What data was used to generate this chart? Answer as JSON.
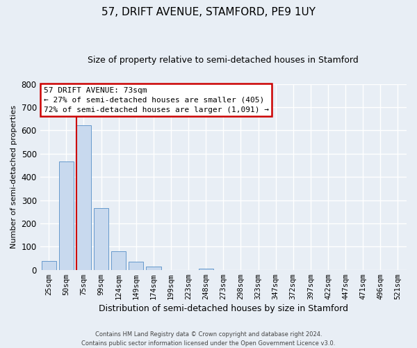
{
  "title": "57, DRIFT AVENUE, STAMFORD, PE9 1UY",
  "subtitle": "Size of property relative to semi-detached houses in Stamford",
  "xlabel": "Distribution of semi-detached houses by size in Stamford",
  "ylabel": "Number of semi-detached properties",
  "bar_labels": [
    "25sqm",
    "50sqm",
    "75sqm",
    "99sqm",
    "124sqm",
    "149sqm",
    "174sqm",
    "199sqm",
    "223sqm",
    "248sqm",
    "273sqm",
    "298sqm",
    "323sqm",
    "347sqm",
    "372sqm",
    "397sqm",
    "422sqm",
    "447sqm",
    "471sqm",
    "496sqm",
    "521sqm"
  ],
  "bar_values": [
    38,
    465,
    623,
    265,
    80,
    35,
    13,
    0,
    0,
    5,
    0,
    0,
    0,
    0,
    0,
    0,
    0,
    0,
    0,
    0,
    0
  ],
  "bar_color": "#c8d9ee",
  "bar_edge_color": "#6699cc",
  "annotation_title": "57 DRIFT AVENUE: 73sqm",
  "annotation_line1": "← 27% of semi-detached houses are smaller (405)",
  "annotation_line2": "72% of semi-detached houses are larger (1,091) →",
  "annotation_box_facecolor": "#ffffff",
  "annotation_box_edgecolor": "#cc0000",
  "marker_line_color": "#cc0000",
  "ylim": [
    0,
    800
  ],
  "yticks": [
    0,
    100,
    200,
    300,
    400,
    500,
    600,
    700,
    800
  ],
  "footer_line1": "Contains HM Land Registry data © Crown copyright and database right 2024.",
  "footer_line2": "Contains public sector information licensed under the Open Government Licence v3.0.",
  "bg_color": "#e8eef5",
  "plot_bg_color": "#e8eef5",
  "grid_color": "#ffffff"
}
